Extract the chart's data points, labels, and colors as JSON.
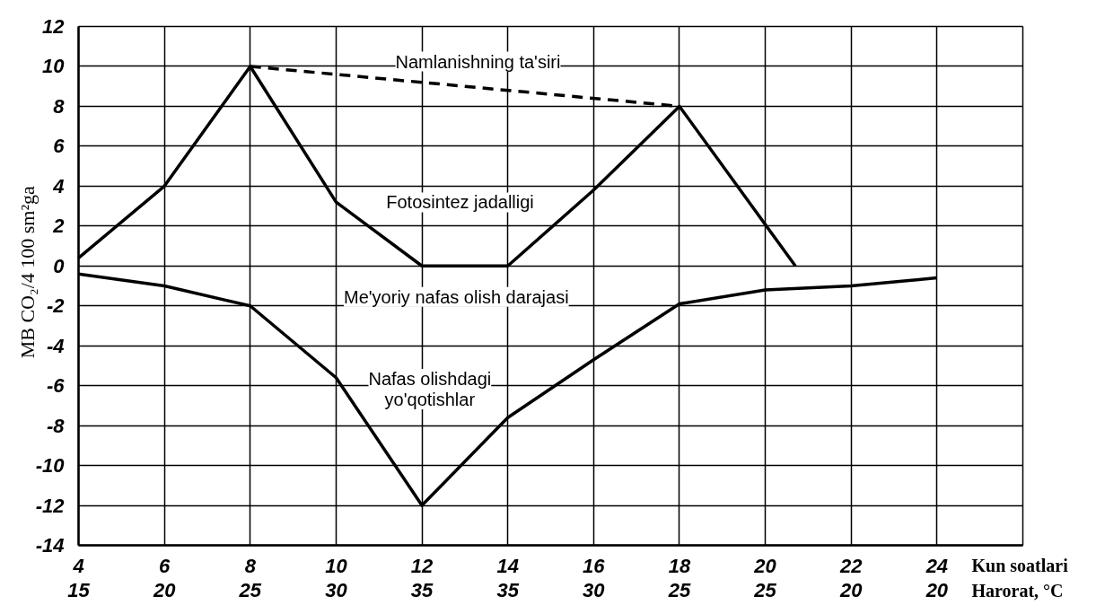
{
  "chart_data": {
    "type": "line",
    "xlabel": "Kun soatlari",
    "x2label": "Harorat, °C",
    "ylabel": "MB CO₂/4  100 sm²ga",
    "xlim": [
      4,
      26
    ],
    "xticks": [
      4,
      6,
      8,
      10,
      12,
      14,
      16,
      18,
      20,
      22,
      24
    ],
    "ylim": [
      -14,
      12
    ],
    "yticks": [
      -14,
      -12,
      -10,
      -8,
      -6,
      -4,
      -2,
      0,
      2,
      4,
      6,
      8,
      10,
      12
    ],
    "grid": true,
    "series": [
      {
        "color": "#000000",
        "x": [
          4,
          6,
          8,
          10,
          12,
          14,
          16,
          18,
          20.7
        ],
        "values": [
          0.4,
          4,
          10,
          3.2,
          0,
          0,
          3.8,
          8,
          0
        ]
      },
      {
        "color": "#000000",
        "line_style": "dashed",
        "x": [
          8,
          18
        ],
        "values": [
          10,
          8
        ]
      },
      {
        "color": "#000000",
        "x": [
          4,
          6,
          8,
          10,
          12,
          14,
          16,
          18,
          20,
          22,
          24
        ],
        "values": [
          -0.4,
          -1,
          -2,
          -5.6,
          -12,
          -7.6,
          -4.7,
          -1.9,
          -1.2,
          -1,
          -0.6
        ]
      }
    ],
    "annotations": [
      "Namlanishning ta'siri",
      "Fotosintez jadalligi",
      "Me'yoriy nafas olish darajasi",
      "Nafas olishdagi\nyo'qotishlar",
      "15",
      "20",
      "25",
      "30",
      "35",
      "35",
      "30",
      "25",
      "25",
      "20",
      "20"
    ]
  }
}
